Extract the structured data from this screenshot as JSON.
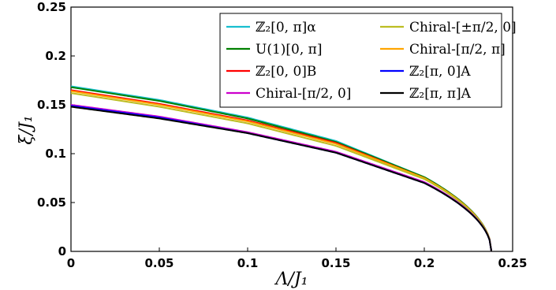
{
  "chart_data": {
    "type": "line",
    "xlabel": "Λ/J₁",
    "ylabel": "ξ/J₁",
    "xlim": [
      0,
      0.25
    ],
    "ylim": [
      0,
      0.25
    ],
    "x_ticks": [
      "0",
      "0.05",
      "0.1",
      "0.15",
      "0.2",
      "0.25"
    ],
    "y_ticks": [
      "0",
      "0.05",
      "0.1",
      "0.15",
      "0.2",
      "0.25"
    ],
    "grid": false,
    "legend_position": "top-right",
    "series": [
      {
        "name": "ℤ₂[0, π]α",
        "color": "#17becf",
        "lambda_c": 0.238,
        "values_at": [
          [
            0,
            0.169
          ],
          [
            0.05,
            0.155
          ],
          [
            0.1,
            0.137
          ],
          [
            0.15,
            0.113
          ],
          [
            0.2,
            0.076
          ],
          [
            0.238,
            0
          ]
        ]
      },
      {
        "name": "U(1)[0, π]",
        "color": "#008000",
        "lambda_c": 0.238,
        "values_at": [
          [
            0,
            0.168
          ],
          [
            0.05,
            0.154
          ],
          [
            0.1,
            0.136
          ],
          [
            0.15,
            0.112
          ],
          [
            0.2,
            0.076
          ],
          [
            0.238,
            0
          ]
        ]
      },
      {
        "name": "ℤ₂[0, 0]B",
        "color": "#ff0000",
        "lambda_c": 0.238,
        "values_at": [
          [
            0,
            0.165
          ],
          [
            0.05,
            0.151
          ],
          [
            0.1,
            0.134
          ],
          [
            0.15,
            0.111
          ],
          [
            0.2,
            0.075
          ],
          [
            0.238,
            0
          ]
        ]
      },
      {
        "name": "Chiral-[π/2, 0]",
        "color": "#cc00cc",
        "lambda_c": 0.238,
        "values_at": [
          [
            0,
            0.15
          ],
          [
            0.05,
            0.138
          ],
          [
            0.1,
            0.122
          ],
          [
            0.15,
            0.102
          ],
          [
            0.2,
            0.071
          ],
          [
            0.238,
            0
          ]
        ]
      },
      {
        "name": "Chiral-[±π/2, 0]",
        "color": "#bcbd22",
        "lambda_c": 0.238,
        "values_at": [
          [
            0,
            0.162
          ],
          [
            0.05,
            0.148
          ],
          [
            0.1,
            0.131
          ],
          [
            0.15,
            0.108
          ],
          [
            0.2,
            0.074
          ],
          [
            0.238,
            0
          ]
        ]
      },
      {
        "name": "Chiral-[π/2, π]",
        "color": "#ffa500",
        "lambda_c": 0.238,
        "values_at": [
          [
            0,
            0.164
          ],
          [
            0.05,
            0.15
          ],
          [
            0.1,
            0.133
          ],
          [
            0.15,
            0.11
          ],
          [
            0.2,
            0.075
          ],
          [
            0.238,
            0
          ]
        ]
      },
      {
        "name": "ℤ₂[π, 0]A",
        "color": "#0000ff",
        "lambda_c": 0.238,
        "values_at": [
          [
            0,
            0.149
          ],
          [
            0.05,
            0.137
          ],
          [
            0.1,
            0.121
          ],
          [
            0.15,
            0.101
          ],
          [
            0.2,
            0.07
          ],
          [
            0.238,
            0
          ]
        ]
      },
      {
        "name": "ℤ₂[π, π]A",
        "color": "#000000",
        "lambda_c": 0.238,
        "values_at": [
          [
            0,
            0.148
          ],
          [
            0.05,
            0.136
          ],
          [
            0.1,
            0.121
          ],
          [
            0.15,
            0.101
          ],
          [
            0.2,
            0.07
          ],
          [
            0.238,
            0
          ]
        ]
      }
    ]
  }
}
